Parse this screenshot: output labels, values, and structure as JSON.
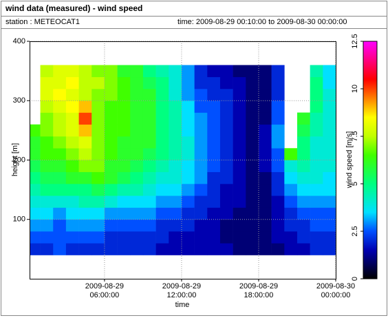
{
  "chart_data": {
    "type": "heatmap",
    "title": "wind data (measured) - wind speed",
    "station": "station : METEOCAT1",
    "time_range": "time: 2009-08-29 00:10:00 to 2009-08-30 00:00:00",
    "xlabel": "time",
    "ylabel": "height [m]",
    "xlim": [
      "2009-08-29 00:10:00",
      "2009-08-30 00:00:00"
    ],
    "xticks": [
      "2009-08-29 06:00:00",
      "2009-08-29 12:00:00",
      "2009-08-29 18:00:00",
      "2009-08-30 00:00:00"
    ],
    "ylim": [
      0,
      400
    ],
    "yticks": [
      100,
      200,
      300,
      400
    ],
    "grid": true,
    "x": [
      "2009-08-29 00:10:00",
      "2009-08-29 01:00:00",
      "2009-08-29 02:00:00",
      "2009-08-29 03:00:00",
      "2009-08-29 04:00:00",
      "2009-08-29 05:00:00",
      "2009-08-29 06:00:00",
      "2009-08-29 07:00:00",
      "2009-08-29 08:00:00",
      "2009-08-29 09:00:00",
      "2009-08-29 10:00:00",
      "2009-08-29 11:00:00",
      "2009-08-29 12:00:00",
      "2009-08-29 13:00:00",
      "2009-08-29 14:00:00",
      "2009-08-29 15:00:00",
      "2009-08-29 16:00:00",
      "2009-08-29 17:00:00",
      "2009-08-29 18:00:00",
      "2009-08-29 19:00:00",
      "2009-08-29 20:00:00",
      "2009-08-29 21:00:00",
      "2009-08-29 22:00:00",
      "2009-08-29 23:00:00",
      "2009-08-30 00:00:00"
    ],
    "y": [
      40,
      60,
      80,
      100,
      120,
      140,
      160,
      180,
      200,
      220,
      240,
      260,
      280,
      300,
      320,
      340,
      360
    ],
    "z": [
      [
        2,
        2,
        2.5,
        2,
        2,
        2,
        2,
        2,
        2,
        2,
        1.5,
        1.5,
        1.5,
        1.5,
        1.5,
        1.5,
        1,
        1,
        1,
        1,
        1.5,
        1.5,
        2,
        2
      ],
      [
        2.5,
        2.5,
        2.5,
        2.5,
        2.5,
        2.5,
        2,
        2,
        2,
        2,
        2,
        1.5,
        1.5,
        1.5,
        1.5,
        1,
        1,
        1,
        1,
        1.5,
        1.5,
        2,
        2,
        2
      ],
      [
        3,
        3,
        2.5,
        3,
        3,
        3,
        2.5,
        2.5,
        2.5,
        2.5,
        2,
        2,
        2,
        1.5,
        1.5,
        1,
        1,
        1,
        1,
        1.5,
        2,
        2,
        2.5,
        2.5
      ],
      [
        3.5,
        3.5,
        3,
        3.5,
        3.5,
        3.5,
        3,
        3,
        3,
        3,
        2.5,
        2.5,
        2,
        2,
        1.5,
        1.5,
        1,
        1,
        1,
        1.5,
        2,
        2.5,
        2.5,
        2.5
      ],
      [
        4,
        4,
        4,
        4,
        4.5,
        4.5,
        4,
        3.5,
        3.5,
        3.5,
        3,
        3,
        2.5,
        2,
        2,
        1.5,
        1.5,
        1,
        1,
        1.5,
        2.5,
        3,
        3,
        3
      ],
      [
        4.5,
        5,
        5,
        5,
        5,
        5.5,
        5,
        4.5,
        4.5,
        4,
        3.5,
        3.5,
        3,
        2.5,
        2,
        1.5,
        1.5,
        1,
        1,
        2,
        3,
        3.5,
        3.5,
        3.5
      ],
      [
        5,
        5.5,
        5.5,
        6,
        6,
        6.5,
        6,
        5.5,
        5,
        4.5,
        4,
        4,
        3.5,
        3,
        2,
        2,
        1.5,
        1,
        1,
        2,
        3.5,
        4,
        4,
        3.5
      ],
      [
        5.5,
        6,
        6,
        6.5,
        7,
        7,
        6,
        6,
        5.5,
        5,
        4.5,
        4,
        3.5,
        3,
        2.5,
        2,
        1.5,
        1,
        1.5,
        2.5,
        4,
        4.5,
        4,
        4
      ],
      [
        6,
        6.5,
        6.5,
        7,
        7.5,
        7,
        6.5,
        6,
        6,
        5.5,
        5,
        4.5,
        4,
        3,
        2.5,
        2,
        1.5,
        1,
        1.5,
        2.5,
        6.5,
        5,
        4,
        4
      ],
      [
        6,
        6.5,
        7,
        7.5,
        8,
        7,
        6.5,
        6,
        6,
        6,
        5,
        4.5,
        4,
        3,
        2.5,
        2,
        1.5,
        1,
        1.5,
        3,
        null,
        5,
        4,
        4
      ],
      [
        6.5,
        7,
        7.5,
        8,
        9,
        7,
        6.5,
        6.5,
        6,
        6,
        5,
        4.5,
        3.5,
        3,
        2.5,
        2,
        1.5,
        1,
        1.5,
        3,
        null,
        5.5,
        4.5,
        4
      ],
      [
        null,
        7,
        7.5,
        8,
        10,
        7,
        6.5,
        6.5,
        6,
        6,
        5,
        4.5,
        3.5,
        3,
        2.5,
        2,
        1.5,
        1,
        1,
        2.5,
        null,
        6,
        4.5,
        4
      ],
      [
        null,
        7.5,
        8,
        8.5,
        9,
        7,
        6.5,
        6.5,
        6,
        6,
        5,
        4.5,
        3.5,
        2.5,
        2.5,
        2,
        1.5,
        1,
        1,
        2.5,
        null,
        null,
        5,
        4
      ],
      [
        null,
        8,
        8.5,
        8,
        7.5,
        7,
        7,
        6.5,
        6,
        6,
        5,
        4,
        3,
        2.5,
        2,
        2,
        1.5,
        1,
        1,
        2,
        null,
        null,
        5,
        4
      ],
      [
        null,
        8,
        8,
        8.5,
        7.5,
        7.5,
        7,
        6.5,
        6,
        5.5,
        5,
        4,
        3,
        2,
        2,
        1.5,
        1.5,
        1,
        1,
        2,
        null,
        null,
        5,
        3.5
      ],
      [
        null,
        7.5,
        8,
        8,
        7.5,
        7,
        7,
        6,
        6,
        5,
        4.5,
        4,
        3,
        2,
        1.5,
        1.5,
        1,
        1,
        1,
        2,
        null,
        null,
        4.5,
        3.5
      ]
    ],
    "colorscale": [
      [
        0,
        "#000000"
      ],
      [
        1.5,
        "#0000b0"
      ],
      [
        2.5,
        "#0050ff"
      ],
      [
        3.5,
        "#00e0ff"
      ],
      [
        5,
        "#00ff80"
      ],
      [
        6.5,
        "#40ff00"
      ],
      [
        7.5,
        "#c0ff00"
      ],
      [
        8.5,
        "#ffff00"
      ],
      [
        9.5,
        "#ff8000"
      ],
      [
        10.5,
        "#ff0000"
      ],
      [
        12.5,
        "#ff00ff"
      ]
    ],
    "colorbar": {
      "label": "wind speed [m/s]",
      "lim": [
        0,
        12.5
      ],
      "ticks": [
        0,
        2.5,
        5,
        7.5,
        10,
        12.5
      ]
    }
  }
}
